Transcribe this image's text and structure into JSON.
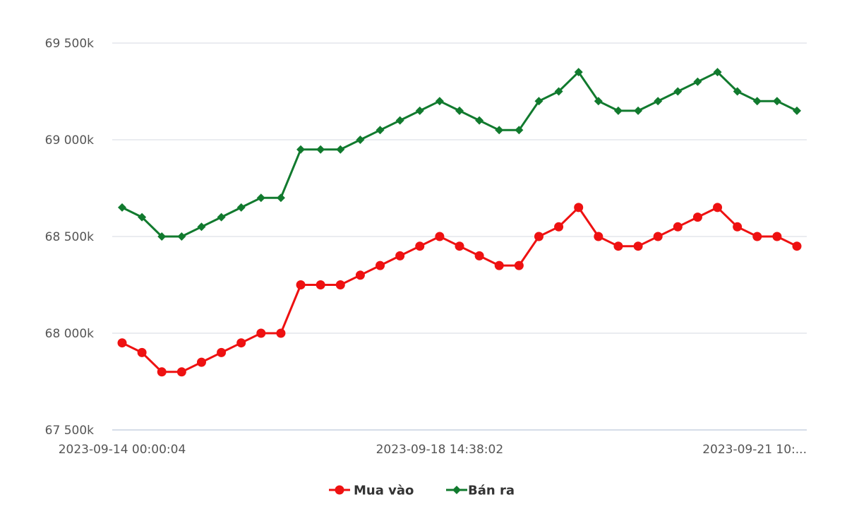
{
  "chart_data": {
    "type": "line",
    "title": "",
    "xlabel": "",
    "ylabel": "",
    "ylim": [
      67500000,
      69500000
    ],
    "y_ticks": [
      67500000,
      68000000,
      68500000,
      69000000,
      69500000
    ],
    "y_tick_labels": [
      "67 500k",
      "68 000k",
      "68 500k",
      "69 000k",
      "69 500k"
    ],
    "x_tick_labels": [
      {
        "index": 0,
        "label": "2023-09-14 00:00:04"
      },
      {
        "index": 16,
        "label": "2023-09-18 14:38:02"
      },
      {
        "index": 31,
        "label": "2023-09-21 10:..."
      }
    ],
    "grid": true,
    "legend": "bottom-center",
    "series": [
      {
        "name": "Mua vào",
        "color": "#ee1111",
        "marker": "circle",
        "values": [
          67950000,
          67900000,
          67800000,
          67800000,
          67850000,
          67900000,
          67950000,
          68000000,
          68000000,
          68250000,
          68250000,
          68250000,
          68300000,
          68350000,
          68400000,
          68450000,
          68500000,
          68450000,
          68400000,
          68350000,
          68350000,
          68500000,
          68550000,
          68650000,
          68500000,
          68450000,
          68450000,
          68500000,
          68550000,
          68600000,
          68650000,
          68550000,
          68500000,
          68500000,
          68450000
        ]
      },
      {
        "name": "Bán ra",
        "color": "#117a2e",
        "marker": "diamond",
        "values": [
          68650000,
          68600000,
          68500000,
          68500000,
          68550000,
          68600000,
          68650000,
          68700000,
          68700000,
          68950000,
          68950000,
          68950000,
          69000000,
          69050000,
          69100000,
          69150000,
          69200000,
          69150000,
          69100000,
          69050000,
          69050000,
          69200000,
          69250000,
          69350000,
          69200000,
          69150000,
          69150000,
          69200000,
          69250000,
          69300000,
          69350000,
          69250000,
          69200000,
          69200000,
          69150000
        ]
      }
    ]
  }
}
